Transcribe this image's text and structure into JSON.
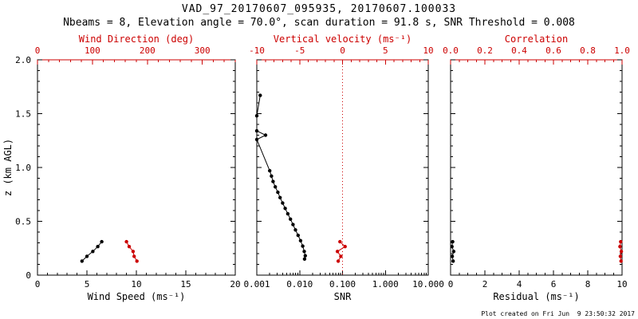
{
  "header": {
    "title": "VAD_97_20170607_095935, 20170607.100033",
    "subtitle": "Nbeams = 8, Elevation angle = 70.0°, scan duration = 91.8 s, SNR Threshold = 0.008"
  },
  "footer": {
    "created": "Plot created on Fri Jun  9 23:50:32 2017"
  },
  "colors": {
    "primary": "#000000",
    "secondary": "#cc0000",
    "background": "#ffffff"
  },
  "chart_data": {
    "type": "line",
    "title": "VAD_97_20170607_095935, 20170607.100033",
    "y_axis": {
      "label": "z (km AGL)",
      "min": 0,
      "max": 2,
      "ticks": [
        0,
        0.5,
        1,
        1.5,
        2
      ],
      "tick_labels": [
        "0",
        "0.5",
        "1.0",
        "1.5",
        "2.0"
      ],
      "minor_step": 0.1
    },
    "panels": [
      {
        "name": "wind",
        "bottom_axis": {
          "label": "Wind Speed (ms⁻¹)",
          "scale": "linear",
          "min": 0,
          "max": 20,
          "ticks": [
            0,
            5,
            10,
            15,
            20
          ],
          "tick_labels": [
            "0",
            "5",
            "10",
            "15",
            "20"
          ],
          "minor_step": 1,
          "color": "#000000"
        },
        "top_axis": {
          "label": "Wind Direction (deg)",
          "scale": "linear",
          "min": 0,
          "max": 360,
          "ticks": [
            0,
            100,
            200,
            300
          ],
          "tick_labels": [
            "0",
            "100",
            "200",
            "300"
          ],
          "minor_step": 20,
          "color": "#cc0000"
        },
        "series": [
          {
            "name": "wind-speed",
            "axis": "bottom",
            "color": "#000000",
            "z": [
              0.13,
              0.175,
              0.22,
              0.265,
              0.31
            ],
            "v": [
              4.5,
              5.0,
              5.6,
              6.1,
              6.5
            ]
          },
          {
            "name": "wind-direction",
            "axis": "top",
            "color": "#cc0000",
            "z": [
              0.13,
              0.175,
              0.22,
              0.265,
              0.31
            ],
            "v": [
              181,
              176,
              174,
              167,
              162
            ]
          }
        ]
      },
      {
        "name": "snr",
        "bottom_axis": {
          "label": "SNR",
          "scale": "log",
          "min": 0.001,
          "max": 10,
          "ticks": [
            0.001,
            0.01,
            0.1,
            1,
            10
          ],
          "tick_labels": [
            "0.001",
            "0.010",
            "0.100",
            "1.000",
            "10.000"
          ],
          "color": "#000000"
        },
        "top_axis": {
          "label": "Vertical velocity (ms⁻¹)",
          "scale": "linear",
          "min": -10,
          "max": 10,
          "ticks": [
            -10,
            -5,
            0,
            5,
            10
          ],
          "tick_labels": [
            "-10",
            "-5",
            "0",
            "5",
            "10"
          ],
          "minor_step": 1,
          "color": "#cc0000"
        },
        "vlines": [
          {
            "axis": "top",
            "v": 0,
            "color": "#cc0000",
            "style": "dotted"
          }
        ],
        "series": [
          {
            "name": "snr-profile",
            "axis": "bottom",
            "color": "#000000",
            "z": [
              1.67,
              1.48,
              1.34,
              1.3,
              1.26,
              0.97,
              0.92,
              0.87,
              0.82,
              0.77,
              0.72,
              0.67,
              0.62,
              0.57,
              0.52,
              0.47,
              0.42,
              0.37,
              0.32,
              0.27,
              0.22,
              0.18,
              0.15
            ],
            "v": [
              0.0012,
              0.001,
              0.001,
              0.0016,
              0.001,
              0.002,
              0.0022,
              0.0024,
              0.0027,
              0.0031,
              0.0035,
              0.004,
              0.0046,
              0.0053,
              0.0061,
              0.007,
              0.008,
              0.0092,
              0.0105,
              0.0118,
              0.0128,
              0.0135,
              0.013
            ]
          },
          {
            "name": "vertical-velocity",
            "axis": "top",
            "color": "#cc0000",
            "z": [
              0.13,
              0.175,
              0.22,
              0.265,
              0.31
            ],
            "v": [
              -0.5,
              -0.2,
              -0.6,
              0.3,
              -0.3
            ]
          }
        ]
      },
      {
        "name": "residual",
        "bottom_axis": {
          "label": "Residual (ms⁻¹)",
          "scale": "linear",
          "min": 0,
          "max": 10,
          "ticks": [
            0,
            2,
            4,
            6,
            8,
            10
          ],
          "tick_labels": [
            "0",
            "2",
            "4",
            "6",
            "8",
            "10"
          ],
          "minor_step": 0.5,
          "color": "#000000"
        },
        "top_axis": {
          "label": "Correlation",
          "scale": "linear",
          "min": 0,
          "max": 1,
          "ticks": [
            0,
            0.2,
            0.4,
            0.6,
            0.8,
            1.0
          ],
          "tick_labels": [
            "0.0",
            "0.2",
            "0.4",
            "0.6",
            "0.8",
            "1.0"
          ],
          "minor_step": 0.05,
          "color": "#cc0000"
        },
        "series": [
          {
            "name": "residual",
            "axis": "bottom",
            "color": "#000000",
            "z": [
              0.13,
              0.175,
              0.22,
              0.265,
              0.31
            ],
            "v": [
              0.15,
              0.1,
              0.18,
              0.08,
              0.12
            ]
          },
          {
            "name": "correlation",
            "axis": "top",
            "color": "#cc0000",
            "z": [
              0.13,
              0.175,
              0.22,
              0.265,
              0.31
            ],
            "v": [
              0.994,
              0.99,
              0.996,
              0.988,
              0.992
            ]
          }
        ]
      }
    ]
  }
}
